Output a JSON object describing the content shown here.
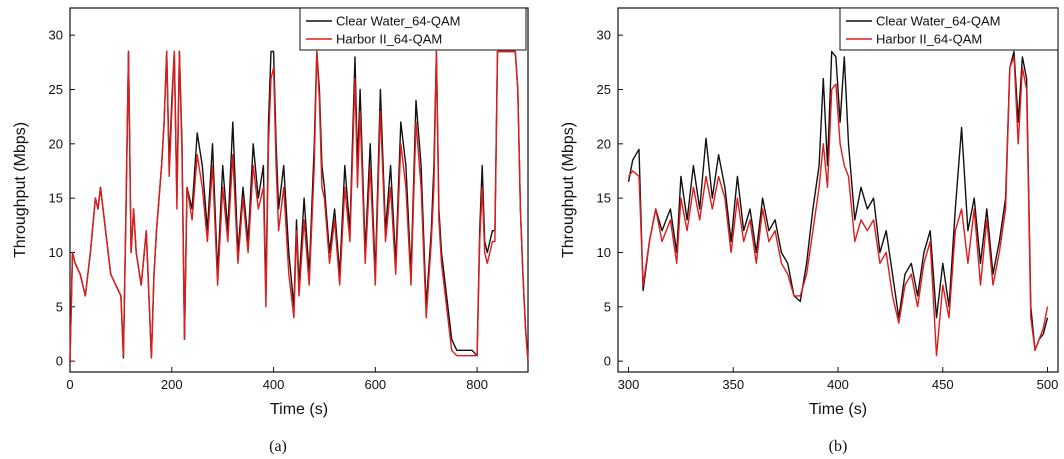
{
  "chart_data": [
    {
      "type": "line",
      "panel_label": "(a)",
      "xlabel": "Time (s)",
      "ylabel": "Throughput (Mbps)",
      "xlim": [
        0,
        900
      ],
      "ylim": [
        -1,
        32.5
      ],
      "xticks": [
        0,
        200,
        400,
        600,
        800
      ],
      "yticks": [
        0,
        5,
        10,
        15,
        20,
        25,
        30
      ],
      "legend_position": "top-right",
      "colors": {
        "Clear Water_64-QAM": "#111111",
        "Harbor II_64-QAM": "#e01b1b"
      },
      "series": [
        {
          "name": "Clear Water_64-QAM",
          "x": [
            0,
            5,
            10,
            20,
            30,
            40,
            50,
            55,
            60,
            70,
            80,
            90,
            100,
            105,
            110,
            115,
            120,
            125,
            130,
            140,
            150,
            155,
            160,
            165,
            170,
            180,
            185,
            190,
            195,
            200,
            205,
            210,
            215,
            220,
            225,
            230,
            240,
            250,
            260,
            270,
            280,
            290,
            300,
            310,
            320,
            330,
            340,
            350,
            360,
            370,
            380,
            385,
            390,
            395,
            400,
            405,
            410,
            420,
            430,
            440,
            445,
            450,
            460,
            470,
            480,
            485,
            490,
            495,
            500,
            510,
            520,
            530,
            540,
            550,
            560,
            565,
            570,
            580,
            590,
            600,
            610,
            620,
            630,
            640,
            650,
            660,
            670,
            680,
            690,
            700,
            710,
            715,
            720,
            725,
            730,
            740,
            750,
            760,
            770,
            780,
            790,
            800,
            805,
            810,
            815,
            820,
            830,
            835,
            840,
            850,
            860,
            870,
            875,
            880,
            885,
            890,
            895,
            900
          ],
          "y": [
            0,
            10,
            9,
            8,
            6,
            10,
            15,
            14,
            16,
            12,
            8,
            7,
            6,
            0.3,
            14,
            28.5,
            10,
            14,
            10,
            7,
            12,
            6,
            0.3,
            8,
            12,
            18,
            22,
            28.5,
            18,
            24,
            28.5,
            15,
            28.5,
            20,
            2,
            16,
            14,
            21,
            18,
            12,
            20,
            8,
            18,
            12,
            22,
            10,
            16,
            11,
            20,
            15,
            18,
            6,
            22,
            28.5,
            28.5,
            20,
            14,
            18,
            10,
            5,
            13,
            7,
            15,
            8,
            20,
            28.5,
            25,
            18,
            16,
            10,
            14,
            8,
            18,
            12,
            28,
            18,
            25,
            10,
            20,
            8,
            25,
            12,
            18,
            9,
            22,
            18,
            8,
            24,
            18,
            5,
            12,
            18,
            28.5,
            14,
            10,
            6,
            2,
            1,
            1,
            1,
            1,
            0.5,
            12,
            18,
            11,
            10,
            12,
            12,
            28.5,
            28.5,
            28.5,
            28.5,
            28.5,
            25,
            14,
            8,
            3,
            0
          ]
        },
        {
          "name": "Harbor II_64-QAM",
          "x": [
            0,
            5,
            10,
            20,
            30,
            40,
            50,
            55,
            60,
            70,
            80,
            90,
            100,
            105,
            110,
            115,
            120,
            125,
            130,
            140,
            150,
            155,
            160,
            165,
            170,
            180,
            185,
            190,
            195,
            200,
            205,
            210,
            215,
            220,
            225,
            230,
            240,
            250,
            260,
            270,
            280,
            290,
            300,
            310,
            320,
            330,
            340,
            350,
            360,
            370,
            380,
            385,
            390,
            395,
            400,
            405,
            410,
            420,
            430,
            440,
            445,
            450,
            460,
            470,
            480,
            485,
            490,
            495,
            500,
            510,
            520,
            530,
            540,
            550,
            560,
            565,
            570,
            580,
            590,
            600,
            610,
            620,
            630,
            640,
            650,
            660,
            670,
            680,
            690,
            700,
            710,
            715,
            720,
            725,
            730,
            740,
            750,
            760,
            770,
            780,
            790,
            800,
            805,
            810,
            815,
            820,
            830,
            835,
            840,
            850,
            860,
            870,
            875,
            880,
            885,
            890,
            895,
            900
          ],
          "y": [
            0,
            10,
            9,
            8,
            6,
            10,
            15,
            14,
            16,
            12,
            8,
            7,
            6,
            0.5,
            14,
            28.5,
            10,
            14,
            10,
            7,
            12,
            6,
            0.3,
            8,
            12,
            18,
            22,
            28.5,
            17,
            23,
            28.5,
            14,
            28.5,
            19,
            2,
            16,
            13,
            19,
            16,
            11,
            18,
            7,
            16,
            11,
            19,
            9,
            15,
            10,
            18,
            14,
            16,
            5,
            20,
            26,
            27,
            18,
            12,
            16,
            8,
            4,
            12,
            6,
            13,
            7,
            18,
            28.5,
            24,
            16,
            15,
            9,
            13,
            7,
            16,
            11,
            26,
            16,
            23,
            9,
            18,
            7,
            23,
            11,
            16,
            8,
            20,
            16,
            7,
            22,
            16,
            4,
            11,
            16,
            28.5,
            13,
            9,
            5,
            1,
            0.5,
            0.5,
            0.5,
            0.5,
            0.5,
            11,
            16,
            10,
            9,
            11,
            11,
            28.5,
            28.5,
            28.5,
            28.5,
            28.5,
            25,
            14,
            8,
            3,
            0
          ]
        }
      ]
    },
    {
      "type": "line",
      "panel_label": "(b)",
      "xlabel": "Time (s)",
      "ylabel": "Throughput (Mbps)",
      "xlim": [
        295,
        505
      ],
      "ylim": [
        -1,
        32.5
      ],
      "xticks": [
        300,
        350,
        400,
        450,
        500
      ],
      "yticks": [
        0,
        5,
        10,
        15,
        20,
        25,
        30
      ],
      "legend_position": "top-right",
      "colors": {
        "Clear Water_64-QAM": "#111111",
        "Harbor II_64-QAM": "#e01b1b"
      },
      "series": [
        {
          "name": "Clear Water_64-QAM",
          "x": [
            300,
            302,
            305,
            307,
            310,
            313,
            316,
            320,
            323,
            325,
            328,
            331,
            334,
            337,
            340,
            343,
            346,
            349,
            352,
            355,
            358,
            361,
            364,
            367,
            370,
            373,
            376,
            379,
            382,
            385,
            388,
            391,
            393,
            395,
            397,
            399,
            401,
            403,
            405,
            408,
            411,
            414,
            417,
            420,
            423,
            426,
            429,
            432,
            435,
            438,
            441,
            444,
            447,
            450,
            453,
            456,
            459,
            462,
            465,
            468,
            471,
            474,
            477,
            480,
            482,
            484,
            486,
            488,
            490,
            492,
            494,
            496,
            498,
            500
          ],
          "y": [
            16.5,
            18.5,
            19.5,
            6.5,
            11,
            14,
            12,
            14,
            10,
            17,
            13,
            18,
            14,
            20.5,
            15,
            19,
            16,
            11,
            17,
            12,
            14,
            10,
            15,
            12,
            13,
            10,
            9,
            6,
            5.5,
            9,
            14,
            18,
            26,
            18,
            28.5,
            28,
            22,
            28,
            20,
            13,
            16,
            14,
            15,
            10,
            12,
            8,
            4,
            8,
            9,
            6,
            10,
            12,
            4,
            9,
            5,
            14,
            21.5,
            12,
            15,
            9,
            14,
            8,
            11,
            15,
            27,
            28.5,
            22,
            28,
            26,
            5,
            1,
            2,
            2.5,
            4
          ]
        },
        {
          "name": "Harbor II_64-QAM",
          "x": [
            300,
            302,
            305,
            307,
            310,
            313,
            316,
            320,
            323,
            325,
            328,
            331,
            334,
            337,
            340,
            343,
            346,
            349,
            352,
            355,
            358,
            361,
            364,
            367,
            370,
            373,
            376,
            379,
            382,
            385,
            388,
            391,
            393,
            395,
            397,
            399,
            401,
            403,
            405,
            408,
            411,
            414,
            417,
            420,
            423,
            426,
            429,
            432,
            435,
            438,
            441,
            444,
            447,
            450,
            453,
            456,
            459,
            462,
            465,
            468,
            471,
            474,
            477,
            480,
            482,
            484,
            486,
            488,
            490,
            492,
            494,
            496,
            498,
            500
          ],
          "y": [
            17,
            17.5,
            17,
            7,
            11,
            14,
            11,
            13,
            9,
            15,
            12,
            16,
            13,
            17,
            14,
            17,
            15,
            10,
            15,
            11,
            13,
            9,
            14,
            11,
            12,
            9,
            8,
            6,
            6,
            8,
            12,
            16,
            20,
            16,
            25,
            25.5,
            20,
            18,
            17,
            11,
            13,
            12,
            13,
            9,
            10,
            6,
            3.5,
            7,
            8,
            5,
            9,
            11,
            0.5,
            7,
            4,
            12,
            14,
            9,
            14,
            7,
            13,
            7,
            10,
            14,
            27,
            28,
            20,
            27,
            25,
            4,
            1,
            2,
            3,
            5
          ]
        }
      ]
    }
  ]
}
